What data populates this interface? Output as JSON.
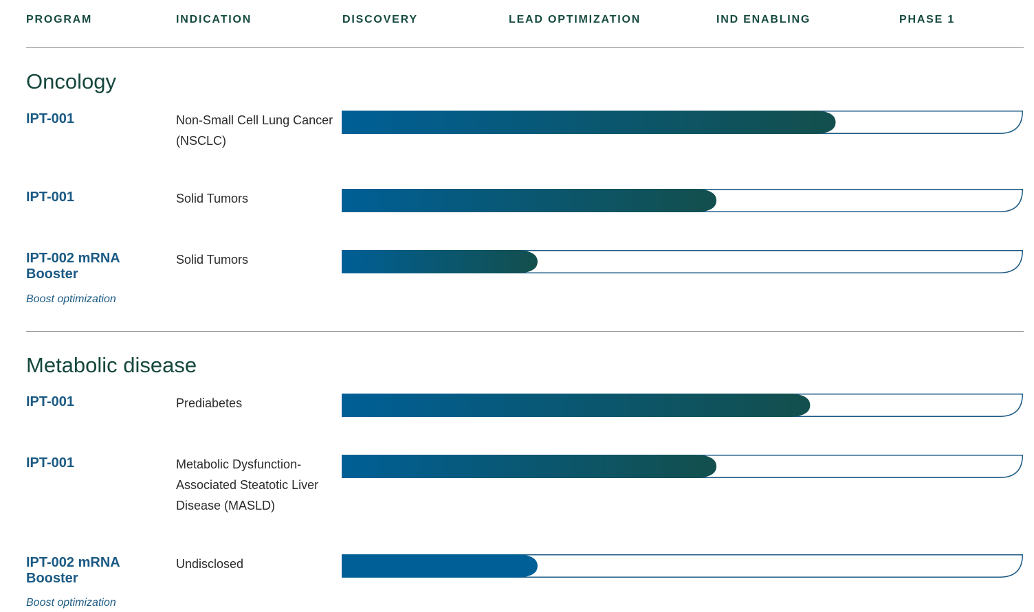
{
  "header": {
    "columns": [
      "PROGRAM",
      "INDICATION",
      "DISCOVERY",
      "LEAD OPTIMIZATION",
      "IND ENABLING",
      "PHASE 1"
    ]
  },
  "colors": {
    "heading": "#15473d",
    "program": "#1b5a84",
    "bar_start": "#005f96",
    "bar_end": "#134f4d",
    "bar_outline": "#1b5a84"
  },
  "chart_data": {
    "type": "bar",
    "orientation": "horizontal",
    "stages": [
      "DISCOVERY",
      "LEAD OPTIMIZATION",
      "IND ENABLING",
      "PHASE 1"
    ],
    "xlim": [
      0,
      4
    ],
    "sections": [
      {
        "title": "Oncology",
        "rows": [
          {
            "program": "IPT-001",
            "indication": "Non-Small Cell Lung Cancer (NSCLC)",
            "note": "",
            "progress": 2.9
          },
          {
            "program": "IPT-001",
            "indication": "Solid Tumors",
            "note": "",
            "progress": 2.2
          },
          {
            "program": "IPT-002 mRNA Booster",
            "indication": "Solid Tumors",
            "note": "Boost optimization",
            "progress": 1.15
          }
        ]
      },
      {
        "title": "Metabolic disease",
        "rows": [
          {
            "program": "IPT-001",
            "indication": "Prediabetes",
            "note": "",
            "progress": 2.75
          },
          {
            "program": "IPT-001",
            "indication": "Metabolic Dysfunction-Associated Steatotic Liver Disease (MASLD)",
            "note": "",
            "progress": 2.2
          },
          {
            "program": "IPT-002 mRNA Booster",
            "indication": "Undisclosed",
            "note": "Boost optimization",
            "progress": 1.15
          }
        ]
      }
    ]
  }
}
